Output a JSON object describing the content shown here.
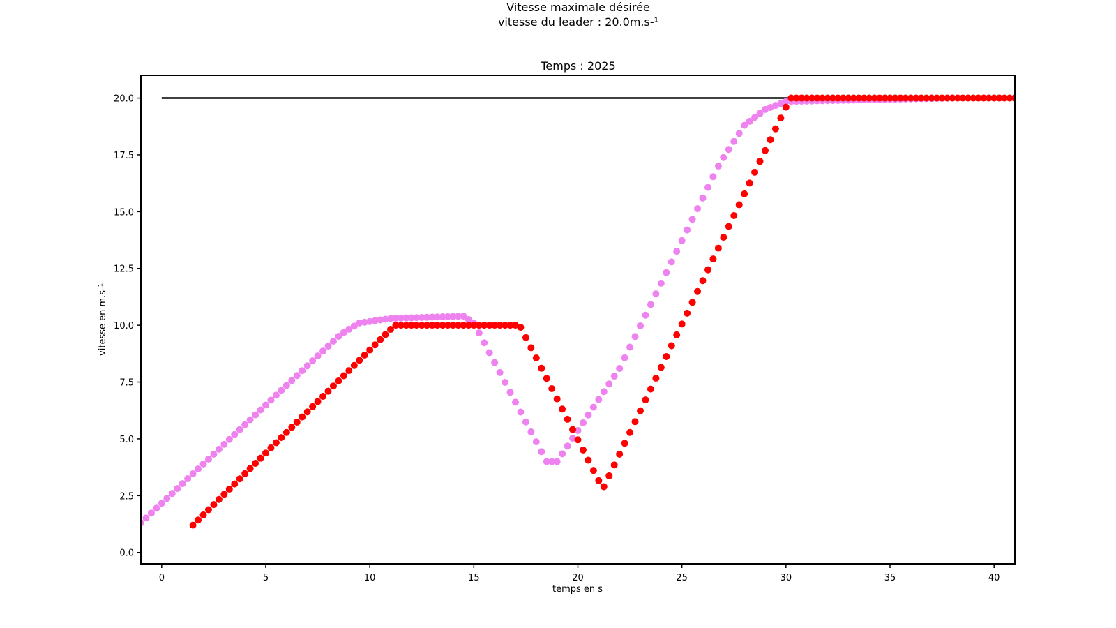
{
  "figure": {
    "title_line1": "Vitesse maximale désirée",
    "title_line2": "vitesse du leader : 20.0m.s-¹"
  },
  "chart_data": {
    "type": "scatter",
    "title": "Temps : 2025",
    "xlabel": "temps en s",
    "ylabel": "vitesse en m.s-¹",
    "xlim": [
      -1,
      41
    ],
    "ylim": [
      -0.5,
      21
    ],
    "xticks": [
      0,
      5,
      10,
      15,
      20,
      25,
      30,
      35,
      40
    ],
    "yticks": [
      0.0,
      2.5,
      5.0,
      7.5,
      10.0,
      12.5,
      15.0,
      17.5,
      20.0
    ],
    "xtick_labels": [
      "0",
      "5",
      "10",
      "15",
      "20",
      "25",
      "30",
      "35",
      "40"
    ],
    "ytick_labels": [
      "0.0",
      "2.5",
      "5.0",
      "7.5",
      "10.0",
      "12.5",
      "15.0",
      "17.5",
      "20.0"
    ],
    "grid": false,
    "colors": {
      "reference": "#000000",
      "pink": "#ee82ee",
      "red": "#ff0000"
    },
    "series": [
      {
        "style": "line",
        "color": "#000000",
        "points": [
          [
            0,
            20
          ],
          [
            41,
            20
          ]
        ]
      },
      {
        "style": "markers",
        "color": "#ee82ee",
        "dx": 0.25,
        "knots": [
          [
            -1.0,
            1.3
          ],
          [
            8.6,
            9.6
          ],
          [
            9.5,
            10.1
          ],
          [
            11.0,
            10.3
          ],
          [
            14.5,
            10.4
          ],
          [
            15.0,
            10.1
          ],
          [
            18.5,
            4.0
          ],
          [
            19.0,
            4.0
          ],
          [
            22.0,
            8.1
          ],
          [
            26.8,
            17.1
          ],
          [
            28.0,
            18.8
          ],
          [
            29.0,
            19.5
          ],
          [
            30.0,
            19.85
          ],
          [
            38.0,
            20.0
          ]
        ]
      },
      {
        "style": "markers",
        "color": "#ff0000",
        "dx": 0.25,
        "knots": [
          [
            1.5,
            1.2
          ],
          [
            11.2,
            10.0
          ],
          [
            17.2,
            10.0
          ],
          [
            21.2,
            2.8
          ],
          [
            30.0,
            19.6
          ],
          [
            30.25,
            20.0
          ],
          [
            41.0,
            20.0
          ]
        ]
      }
    ]
  }
}
